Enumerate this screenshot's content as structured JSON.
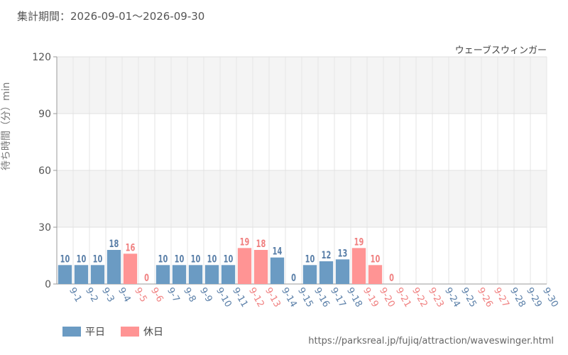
{
  "header": {
    "period_label": "集計期間：2026-09-01～2026-09-30",
    "attraction_name": "ウェーブスウィンガー"
  },
  "legend": {
    "weekday_label": "平日",
    "holiday_label": "休日"
  },
  "source_url": "https://parksreal.jp/fujiq/attraction/waveswinger.html",
  "colors": {
    "weekday": "#6b9bc3",
    "holiday": "#ff9494",
    "weekday_text": "#5a7fa8",
    "holiday_text": "#f08080"
  },
  "chart_data": {
    "type": "bar",
    "title": "",
    "xlabel": "",
    "ylabel": "待ち時間（分）min",
    "ylim": [
      0,
      120
    ],
    "yticks": [
      0,
      30,
      60,
      90,
      120
    ],
    "grid": true,
    "legend_position": "bottom-left",
    "categories": [
      "9-1",
      "9-2",
      "9-3",
      "9-4",
      "9-5",
      "9-6",
      "9-7",
      "9-8",
      "9-9",
      "9-10",
      "9-11",
      "9-12",
      "9-13",
      "9-14",
      "9-15",
      "9-16",
      "9-17",
      "9-18",
      "9-19",
      "9-20",
      "9-21",
      "9-22",
      "9-23",
      "9-24",
      "9-25",
      "9-26",
      "9-27",
      "9-28",
      "9-29",
      "9-30"
    ],
    "day_type": [
      "weekday",
      "weekday",
      "weekday",
      "weekday",
      "holiday",
      "holiday",
      "weekday",
      "weekday",
      "weekday",
      "weekday",
      "weekday",
      "holiday",
      "holiday",
      "weekday",
      "weekday",
      "weekday",
      "weekday",
      "weekday",
      "holiday",
      "holiday",
      "holiday",
      "holiday",
      "holiday",
      "weekday",
      "weekday",
      "holiday",
      "holiday",
      "weekday",
      "weekday",
      "weekday"
    ],
    "values": [
      10,
      10,
      10,
      18,
      16,
      0,
      10,
      10,
      10,
      10,
      10,
      19,
      18,
      14,
      0,
      10,
      12,
      13,
      19,
      10,
      0,
      null,
      null,
      null,
      null,
      null,
      null,
      null,
      null,
      null
    ]
  }
}
